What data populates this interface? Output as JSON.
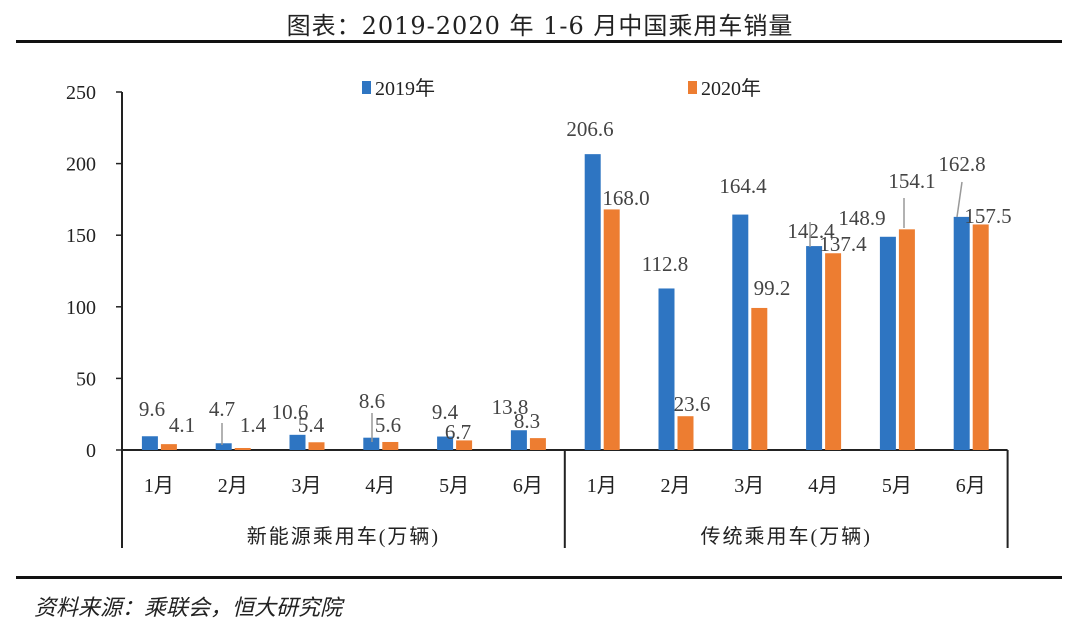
{
  "title": "图表：2019-2020 年 1-6 月中国乘用车销量",
  "source": "资料来源：乘联会，恒大研究院",
  "chart_data": {
    "type": "bar",
    "title": "图表：2019-2020 年 1-6 月中国乘用车销量",
    "xlabel": "",
    "ylabel": "",
    "ylim": [
      0,
      250
    ],
    "yticks": [
      "0",
      "50",
      "100",
      "150",
      "200",
      "250"
    ],
    "categories": [
      "1月",
      "2月",
      "3月",
      "4月",
      "5月",
      "6月",
      "1月",
      "2月",
      "3月",
      "4月",
      "5月",
      "6月"
    ],
    "groups": [
      "新能源乘用车(万辆)",
      "传统乘用车(万辆)"
    ],
    "legend_placement": "top",
    "series": [
      {
        "name": "2019年",
        "color": "#2e75c2",
        "values": [
          9.6,
          4.7,
          10.6,
          8.6,
          9.4,
          13.8,
          206.6,
          112.8,
          164.4,
          142.4,
          148.9,
          162.8
        ],
        "labels": [
          "9.6",
          "4.7",
          "10.6",
          "8.6",
          "9.4",
          "13.8",
          "206.6",
          "112.8",
          "164.4",
          "142.4",
          "148.9",
          "162.8"
        ]
      },
      {
        "name": "2020年",
        "color": "#ed7d31",
        "values": [
          4.1,
          1.4,
          5.4,
          5.6,
          6.7,
          8.3,
          168.0,
          23.6,
          99.2,
          137.4,
          154.1,
          157.5
        ],
        "labels": [
          "4.1",
          "1.4",
          "5.4",
          "5.6",
          "6.7",
          "8.3",
          "168.0",
          "23.6",
          "99.2",
          "137.4",
          "154.1",
          "157.5"
        ]
      }
    ]
  }
}
